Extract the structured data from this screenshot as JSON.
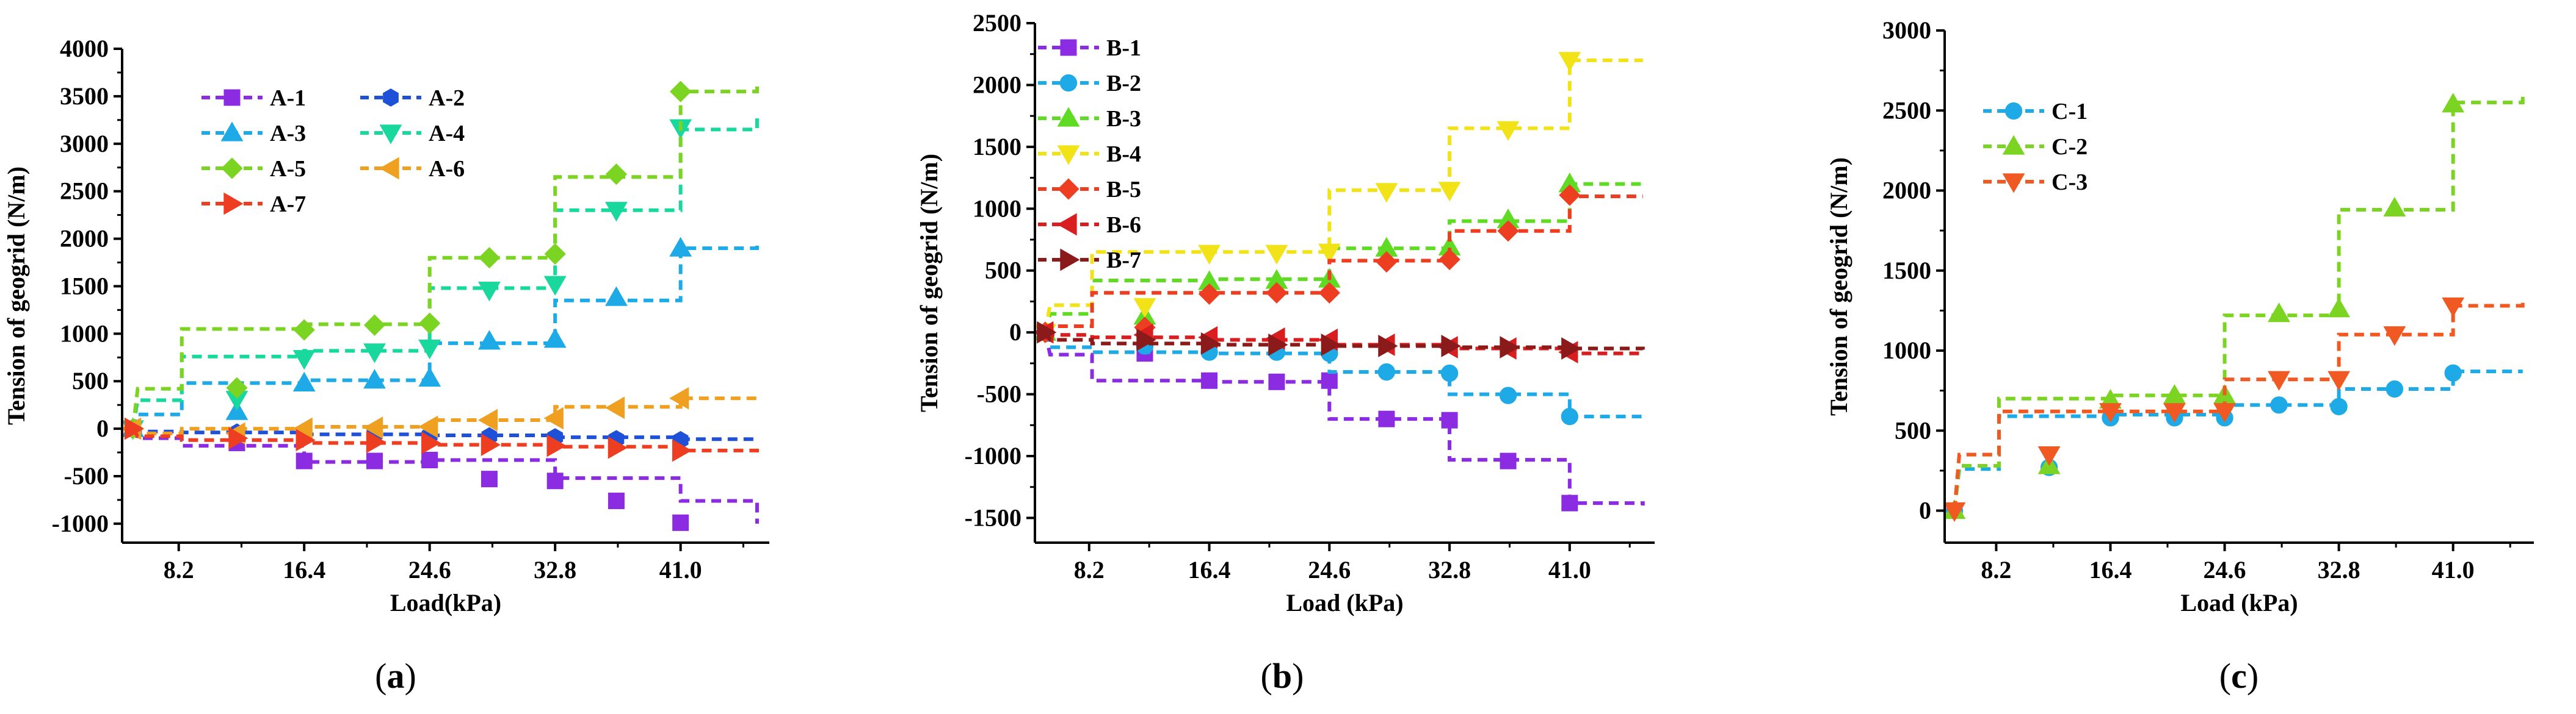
{
  "chart_data": [
    {
      "panel": "(a)",
      "panel_letter": "a",
      "type": "line",
      "xlabel": "Load(kPa)",
      "ylabel": "Tension of geogrid (N/m)",
      "xlim": [
        4.5,
        46.8
      ],
      "ylim": [
        -1200,
        4000
      ],
      "xticks": [
        8.2,
        16.4,
        24.6,
        32.8,
        41.0
      ],
      "xtick_labels": [
        "8.2",
        "16.4",
        "24.6",
        "32.8",
        "41.0"
      ],
      "yticks": [
        -1000,
        -500,
        0,
        500,
        1000,
        1500,
        2000,
        2500,
        3000,
        3500,
        4000
      ],
      "ytick_labels": [
        "-1000",
        "-500",
        "0",
        "500",
        "1000",
        "1500",
        "2000",
        "2500",
        "3000",
        "3500",
        "4000"
      ],
      "grid": false,
      "legend": {
        "placement": "top-left",
        "columns": 2
      },
      "series": [
        {
          "name": "A-1",
          "color": "#8B2BE2",
          "marker": "square",
          "levels": [
            -100,
            -180,
            -350,
            -330,
            -520,
            -760,
            -1000
          ],
          "marker_values": [
            0,
            -150,
            -340,
            -340,
            -330,
            -530,
            -550,
            -760,
            -990
          ]
        },
        {
          "name": "A-2",
          "color": "#1E50D8",
          "marker": "hexagon",
          "levels": [
            -30,
            -40,
            -60,
            -70,
            -90,
            -110,
            -130
          ],
          "marker_values": [
            0,
            -40,
            -50,
            -60,
            -70,
            -80,
            -90,
            -110,
            -120
          ]
        },
        {
          "name": "A-3",
          "color": "#1EAAE6",
          "marker": "triangle-up",
          "levels": [
            150,
            480,
            510,
            900,
            1350,
            1900,
            1950
          ],
          "marker_values": [
            0,
            180,
            480,
            510,
            530,
            920,
            940,
            1380,
            1900
          ]
        },
        {
          "name": "A-4",
          "color": "#18D89E",
          "marker": "triangle-down",
          "levels": [
            300,
            760,
            820,
            1480,
            2300,
            3150,
            3300
          ],
          "marker_values": [
            0,
            310,
            740,
            810,
            850,
            1460,
            1520,
            2300,
            3170
          ]
        },
        {
          "name": "A-5",
          "color": "#7CD422",
          "marker": "diamond",
          "levels": [
            420,
            1050,
            1100,
            1800,
            2650,
            3550,
            3650
          ],
          "marker_values": [
            0,
            430,
            1040,
            1090,
            1110,
            1800,
            1840,
            2680,
            3550
          ]
        },
        {
          "name": "A-6",
          "color": "#F0A020",
          "marker": "triangle-left",
          "levels": [
            -50,
            0,
            20,
            90,
            230,
            320,
            320
          ],
          "marker_values": [
            0,
            -50,
            0,
            10,
            20,
            90,
            110,
            220,
            320
          ]
        },
        {
          "name": "A-7",
          "color": "#EE3E22",
          "marker": "triangle-right",
          "levels": [
            -80,
            -120,
            -150,
            -170,
            -190,
            -230,
            -250
          ],
          "marker_values": [
            0,
            -100,
            -120,
            -140,
            -150,
            -170,
            -180,
            -200,
            -230
          ]
        }
      ]
    },
    {
      "panel": "(b)",
      "panel_letter": "b",
      "type": "line",
      "xlabel": "Load (kPa)",
      "ylabel": "Tension of geogrid (N/m)",
      "xlim": [
        4.5,
        46.8
      ],
      "ylim": [
        -1700,
        2500
      ],
      "xticks": [
        8.2,
        16.4,
        24.6,
        32.8,
        41.0
      ],
      "xtick_labels": [
        "8.2",
        "16.4",
        "24.6",
        "32.8",
        "41.0"
      ],
      "yticks": [
        -1500,
        -1000,
        -500,
        0,
        500,
        1000,
        1500,
        2000,
        2500
      ],
      "ytick_labels": [
        "-1500",
        "-1000",
        "-500",
        "0",
        "500",
        "1000",
        "1500",
        "2000",
        "2500"
      ],
      "grid": false,
      "legend": {
        "placement": "top-left",
        "columns": 1
      },
      "series": [
        {
          "name": "B-1",
          "color": "#8B2BE2",
          "marker": "square",
          "levels": [
            -180,
            -390,
            -400,
            -700,
            -1030,
            -1380,
            -1400
          ],
          "marker_values": [
            0,
            -170,
            -390,
            -400,
            -390,
            -700,
            -710,
            -1040,
            -1380
          ]
        },
        {
          "name": "B-2",
          "color": "#1EAAE6",
          "marker": "circle",
          "levels": [
            -120,
            -160,
            -170,
            -320,
            -500,
            -680,
            -700
          ],
          "marker_values": [
            0,
            -110,
            -160,
            -160,
            -170,
            -320,
            -330,
            -510,
            -680
          ]
        },
        {
          "name": "B-3",
          "color": "#5EDB22",
          "marker": "triangle-up",
          "levels": [
            150,
            420,
            430,
            680,
            900,
            1200,
            1220
          ],
          "marker_values": [
            0,
            130,
            410,
            420,
            430,
            680,
            690,
            910,
            1200
          ]
        },
        {
          "name": "B-4",
          "color": "#F2E218",
          "marker": "triangle-down",
          "levels": [
            220,
            650,
            650,
            1150,
            1650,
            2200,
            2200
          ],
          "marker_values": [
            0,
            210,
            640,
            640,
            650,
            1140,
            1150,
            1640,
            2200
          ]
        },
        {
          "name": "B-5",
          "color": "#EE3E22",
          "marker": "diamond",
          "levels": [
            50,
            320,
            320,
            580,
            820,
            1100,
            1100
          ],
          "marker_values": [
            0,
            40,
            310,
            320,
            320,
            570,
            590,
            820,
            1110
          ]
        },
        {
          "name": "B-6",
          "color": "#D81E1E",
          "marker": "triangle-left",
          "levels": [
            -20,
            -40,
            -60,
            -100,
            -130,
            -170,
            -180
          ],
          "marker_values": [
            0,
            -20,
            -40,
            -50,
            -60,
            -100,
            -120,
            -130,
            -160
          ]
        },
        {
          "name": "B-7",
          "color": "#8B1A1A",
          "marker": "triangle-right",
          "levels": [
            -60,
            -90,
            -100,
            -110,
            -120,
            -130,
            -140
          ],
          "marker_values": [
            0,
            -60,
            -90,
            -100,
            -100,
            -110,
            -110,
            -120,
            -130
          ]
        }
      ]
    },
    {
      "panel": "(c)",
      "panel_letter": "c",
      "type": "line",
      "xlabel": "Load (kPa)",
      "ylabel": "Tension of geogrid (N/m)",
      "xlim": [
        4.5,
        46.8
      ],
      "ylim": [
        -200,
        3000
      ],
      "xticks": [
        8.2,
        16.4,
        24.6,
        32.8,
        41.0
      ],
      "xtick_labels": [
        "8.2",
        "16.4",
        "24.6",
        "32.8",
        "41.0"
      ],
      "yticks": [
        0,
        500,
        1000,
        1500,
        2000,
        2500,
        3000
      ],
      "ytick_labels": [
        "0",
        "500",
        "1000",
        "1500",
        "2000",
        "2500",
        "3000"
      ],
      "grid": false,
      "legend": {
        "placement": "top-left",
        "columns": 1
      },
      "series": [
        {
          "name": "C-1",
          "color": "#1EAAE6",
          "marker": "circle",
          "levels": [
            260,
            590,
            600,
            660,
            760,
            870,
            870
          ],
          "marker_values": [
            0,
            270,
            580,
            580,
            580,
            660,
            650,
            760,
            860
          ]
        },
        {
          "name": "C-2",
          "color": "#7CD422",
          "marker": "triangle-up",
          "levels": [
            280,
            700,
            720,
            1220,
            1880,
            2550,
            2600
          ],
          "marker_values": [
            0,
            280,
            690,
            720,
            720,
            1230,
            1260,
            1890,
            2540
          ]
        },
        {
          "name": "C-3",
          "color": "#F05A22",
          "marker": "triangle-down",
          "levels": [
            350,
            620,
            620,
            820,
            1100,
            1280,
            1300
          ],
          "marker_values": [
            0,
            350,
            620,
            620,
            620,
            820,
            820,
            1100,
            1280
          ]
        }
      ]
    }
  ]
}
